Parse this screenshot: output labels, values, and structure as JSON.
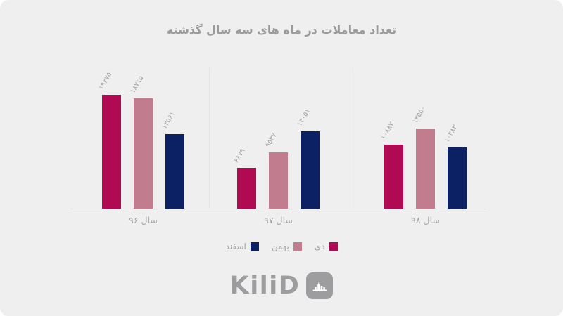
{
  "page": {
    "background": "#efeff0"
  },
  "title": "تعداد معاملات در ماه های سه سال گذشته",
  "chart_data": {
    "type": "bar",
    "title": "تعداد معاملات در ماه های سه سال گذشته",
    "direction": "rtl",
    "categories": [
      "سال ۹۶",
      "سال ۹۷",
      "سال ۹۸"
    ],
    "series": [
      {
        "name": "دی",
        "slug": "dey",
        "color": "#b00b52",
        "values": [
          19275,
          6879,
          10887
        ],
        "value_labels": [
          "۱۹۲۷۵",
          "۶۸۷۹",
          "۱۰۸۸۷"
        ]
      },
      {
        "name": "بهمن",
        "slug": "bahman",
        "color": "#c17c8e",
        "values": [
          18715,
          9537,
          13550
        ],
        "value_labels": [
          "۱۸۷۱۵",
          "۹۵۳۷",
          "۱۳۵۵۰"
        ]
      },
      {
        "name": "اسفند",
        "slug": "esfand",
        "color": "#0b2163",
        "values": [
          12561,
          13051,
          10383
        ],
        "value_labels": [
          "۱۲۵۶۱",
          "۱۳۰۵۱",
          "۱۰۳۸۳"
        ]
      }
    ],
    "ylim": [
      0,
      23800
    ],
    "grid": false,
    "legend_position": "bottom",
    "value_label_rotation": -60
  },
  "logo": {
    "text": "KiliD",
    "icon": "kilid-skyline-icon",
    "color": "#9d9da0"
  }
}
